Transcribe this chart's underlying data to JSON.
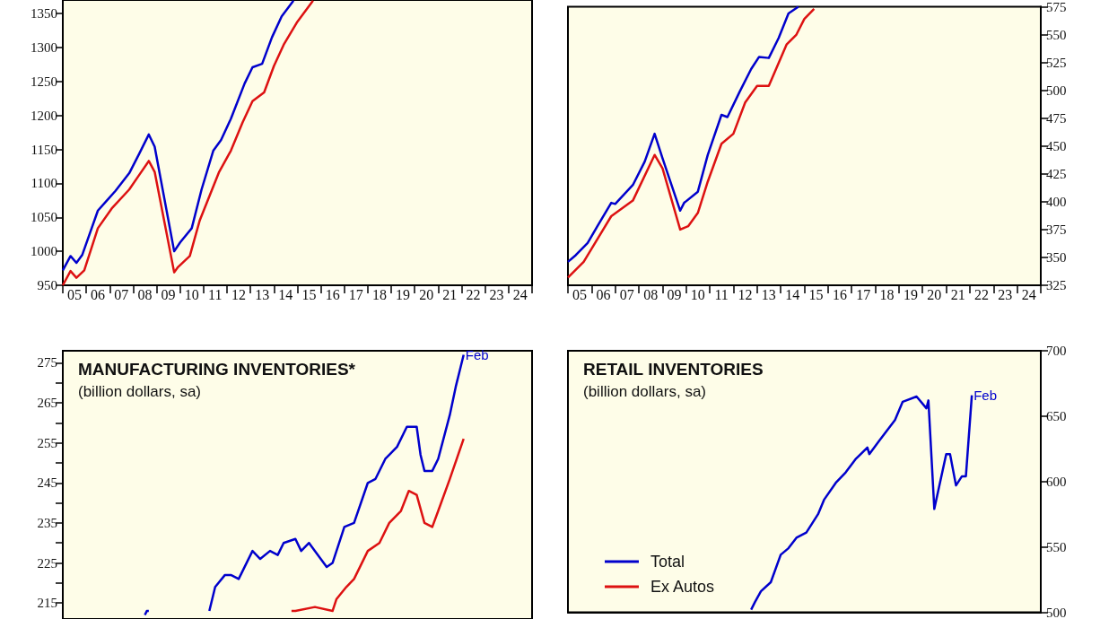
{
  "chart_data": [
    {
      "type": "line",
      "xlim": [
        "2005",
        "2025"
      ],
      "ylim": [
        950,
        1370
      ],
      "yticks": [
        950,
        1000,
        1050,
        1100,
        1150,
        1200,
        1250,
        1300,
        1350
      ],
      "xticks": [
        {
          "value": "2005",
          "label": null
        },
        {
          "value": "2005-07",
          "label": "05"
        },
        {
          "value": "2006",
          "label": null
        },
        {
          "value": "2006-07",
          "label": "06"
        },
        {
          "value": "2007",
          "label": null
        },
        {
          "value": "2007-07",
          "label": "07"
        },
        {
          "value": "2008",
          "label": null
        },
        {
          "value": "2008-07",
          "label": "08"
        },
        {
          "value": "2009",
          "label": null
        },
        {
          "value": "2009-07",
          "label": "09"
        },
        {
          "value": "2010",
          "label": null
        },
        {
          "value": "2010-07",
          "label": "10"
        },
        {
          "value": "2011",
          "label": null
        },
        {
          "value": "2011-07",
          "label": "11"
        },
        {
          "value": "2012",
          "label": null
        },
        {
          "value": "2012-07",
          "label": "12"
        },
        {
          "value": "2013",
          "label": null
        },
        {
          "value": "2013-07",
          "label": "13"
        },
        {
          "value": "2014",
          "label": null
        },
        {
          "value": "2014-07",
          "label": "14"
        },
        {
          "value": "2015",
          "label": null
        },
        {
          "value": "2015-07",
          "label": "15"
        },
        {
          "value": "2016",
          "label": null
        },
        {
          "value": "2016-07",
          "label": "16"
        },
        {
          "value": "2017",
          "label": null
        },
        {
          "value": "2017-07",
          "label": "17"
        },
        {
          "value": "2018",
          "label": null
        },
        {
          "value": "2018-07",
          "label": "18"
        },
        {
          "value": "2019",
          "label": null
        },
        {
          "value": "2019-07",
          "label": "19"
        },
        {
          "value": "2020",
          "label": null
        },
        {
          "value": "2020-07",
          "label": "20"
        },
        {
          "value": "2021",
          "label": null
        },
        {
          "value": "2021-07",
          "label": "21"
        },
        {
          "value": "2022",
          "label": null
        },
        {
          "value": "2022-07",
          "label": "22"
        },
        {
          "value": "2023",
          "label": null
        },
        {
          "value": "2023-07",
          "label": "23"
        },
        {
          "value": "2024",
          "label": null
        },
        {
          "value": "2024-07",
          "label": "24"
        },
        {
          "value": "2025",
          "label": null
        }
      ],
      "grid": false,
      "series": [
        {
          "color": "#0000cc",
          "x": [
            "2005-01",
            "2005-05",
            "2005-08",
            "2005-11",
            "2006-07",
            "2006-11",
            "2007-04",
            "2007-11",
            "2008-04",
            "2008-09",
            "2008-12",
            "2009-10",
            "2010-01",
            "2010-07",
            "2010-12",
            "2011-06",
            "2011-10",
            "2012-03",
            "2012-10",
            "2013-02",
            "2013-07",
            "2013-12",
            "2014-05",
            "2014-11"
          ],
          "values": [
            972,
            993,
            983,
            995,
            1060,
            1073,
            1089,
            1115,
            1143,
            1172,
            1154,
            1000,
            1013,
            1034,
            1091,
            1148,
            1164,
            1195,
            1247,
            1271,
            1276,
            1315,
            1346,
            1369
          ]
        },
        {
          "color": "#dd1111",
          "x": [
            "2005-01",
            "2005-05",
            "2005-08",
            "2005-12",
            "2006-07",
            "2007-02",
            "2007-11",
            "2008-04",
            "2008-09",
            "2008-12",
            "2009-10",
            "2009-12",
            "2010-06",
            "2010-11",
            "2011-09",
            "2012-03",
            "2012-09",
            "2013-02",
            "2013-08",
            "2014-01",
            "2014-06",
            "2015-01",
            "2015-09"
          ],
          "values": [
            950,
            971,
            961,
            972,
            1034,
            1063,
            1091,
            1112,
            1133,
            1117,
            969,
            977,
            993,
            1045,
            1117,
            1148,
            1190,
            1221,
            1234,
            1273,
            1304,
            1338,
            1369
          ]
        }
      ]
    },
    {
      "type": "line",
      "xlim": [
        "2005",
        "2025"
      ],
      "ylim": [
        325,
        575
      ],
      "yticks": [
        325,
        350,
        375,
        400,
        425,
        450,
        475,
        500,
        525,
        550,
        575
      ],
      "xticks": [
        {
          "value": "2005",
          "label": null
        },
        {
          "value": "2005-07",
          "label": "05"
        },
        {
          "value": "2006",
          "label": null
        },
        {
          "value": "2006-07",
          "label": "06"
        },
        {
          "value": "2007",
          "label": null
        },
        {
          "value": "2007-07",
          "label": "07"
        },
        {
          "value": "2008",
          "label": null
        },
        {
          "value": "2008-07",
          "label": "08"
        },
        {
          "value": "2009",
          "label": null
        },
        {
          "value": "2009-07",
          "label": "09"
        },
        {
          "value": "2010",
          "label": null
        },
        {
          "value": "2010-07",
          "label": "10"
        },
        {
          "value": "2011",
          "label": null
        },
        {
          "value": "2011-07",
          "label": "11"
        },
        {
          "value": "2012",
          "label": null
        },
        {
          "value": "2012-07",
          "label": "12"
        },
        {
          "value": "2013",
          "label": null
        },
        {
          "value": "2013-07",
          "label": "13"
        },
        {
          "value": "2014",
          "label": null
        },
        {
          "value": "2014-07",
          "label": "14"
        },
        {
          "value": "2015",
          "label": null
        },
        {
          "value": "2015-07",
          "label": "15"
        },
        {
          "value": "2016",
          "label": null
        },
        {
          "value": "2016-07",
          "label": "16"
        },
        {
          "value": "2017",
          "label": null
        },
        {
          "value": "2017-07",
          "label": "17"
        },
        {
          "value": "2018",
          "label": null
        },
        {
          "value": "2018-07",
          "label": "18"
        },
        {
          "value": "2019",
          "label": null
        },
        {
          "value": "2019-07",
          "label": "19"
        },
        {
          "value": "2020",
          "label": null
        },
        {
          "value": "2020-07",
          "label": "20"
        },
        {
          "value": "2021",
          "label": null
        },
        {
          "value": "2021-07",
          "label": "21"
        },
        {
          "value": "2022",
          "label": null
        },
        {
          "value": "2022-07",
          "label": "22"
        },
        {
          "value": "2023",
          "label": null
        },
        {
          "value": "2023-07",
          "label": "23"
        },
        {
          "value": "2024",
          "label": null
        },
        {
          "value": "2024-07",
          "label": "24"
        },
        {
          "value": "2025",
          "label": null
        }
      ],
      "grid": false,
      "series": [
        {
          "color": "#0000cc",
          "x": [
            "2005-01",
            "2005-05",
            "2005-11",
            "2006-04",
            "2006-11",
            "2007-01",
            "2007-10",
            "2008-04",
            "2008-09",
            "2009-01",
            "2009-10",
            "2009-12",
            "2010-07",
            "2010-12",
            "2011-07",
            "2011-10",
            "2012-04",
            "2012-10",
            "2013-02",
            "2013-07",
            "2013-12",
            "2014-05",
            "2014-10"
          ],
          "values": [
            346,
            352,
            363,
            378,
            399,
            398,
            415,
            436,
            461,
            439,
            392,
            399,
            409,
            442,
            478,
            476,
            498,
            519,
            530,
            529,
            547,
            569,
            575
          ]
        },
        {
          "color": "#dd1111",
          "x": [
            "2005-01",
            "2005-09",
            "2006-11",
            "2007-10",
            "2008-09",
            "2009-01",
            "2009-10",
            "2010-02",
            "2010-07",
            "2010-12",
            "2011-07",
            "2012-01",
            "2012-07",
            "2013-01",
            "2013-07",
            "2014-04",
            "2014-09",
            "2015-01",
            "2015-06"
          ],
          "values": [
            332,
            346,
            387,
            401,
            442,
            430,
            375,
            378,
            390,
            418,
            452,
            461,
            489,
            504,
            504,
            541,
            550,
            564,
            573
          ]
        }
      ]
    },
    {
      "type": "line",
      "title": "MANUFACTURING INVENTORIES*",
      "subtitle": "(billion dollars, sa)",
      "xlim": [
        "2005",
        "2025"
      ],
      "ylim": [
        211,
        278
      ],
      "yticks": [
        215,
        {
          "value": 220,
          "label": null
        },
        225,
        {
          "value": 230,
          "label": null
        },
        235,
        {
          "value": 240,
          "label": null
        },
        245,
        {
          "value": 250,
          "label": null
        },
        255,
        {
          "value": 260,
          "label": null
        },
        265,
        {
          "value": 270,
          "label": null
        },
        275
      ],
      "tick_labels": "y",
      "grid": false,
      "annotations": [
        {
          "text": "Feb",
          "x": "2022-02",
          "y": 277
        }
      ],
      "series": [
        {
          "color": "#0000cc",
          "x": [
            "2008-07",
            "2008-08",
            "2008-09",
            "2008-10",
            "2011-03",
            "2011-04",
            "2011-07",
            "2011-12",
            "2012-03",
            "2012-07",
            "2013-02",
            "2013-06",
            "2013-11",
            "2014-03",
            "2014-06",
            "2014-12",
            "2015-03",
            "2015-07",
            "2015-10",
            "2016-04",
            "2016-07",
            "2017-01",
            "2017-06",
            "2018-01",
            "2018-05",
            "2018-10",
            "2019-04",
            "2019-09",
            "2020-02",
            "2020-04",
            "2020-06",
            "2020-10",
            "2021-01",
            "2021-07",
            "2021-10",
            "2022-02"
          ],
          "values": [
            212,
            213,
            213,
            null,
            null,
            213,
            219,
            222,
            222,
            221,
            228,
            226,
            228,
            227,
            230,
            231,
            228,
            230,
            228,
            224,
            225,
            234,
            235,
            245,
            246,
            251,
            254,
            259,
            259,
            252,
            248,
            248,
            251,
            262,
            269,
            277
          ]
        },
        {
          "color": "#dd1111",
          "x": [
            "2014-10",
            "2014-12",
            "2015-10",
            "2016-07",
            "2016-09",
            "2017-02",
            "2017-06",
            "2018-01",
            "2018-07",
            "2018-12",
            "2019-06",
            "2019-10",
            "2020-02",
            "2020-06",
            "2020-10",
            "2021-01",
            "2021-07",
            "2022-02"
          ],
          "values": [
            213,
            213,
            214,
            213,
            216,
            219,
            221,
            228,
            230,
            235,
            238,
            243,
            242,
            235,
            234,
            238,
            246,
            256
          ]
        }
      ]
    },
    {
      "type": "line",
      "title": "RETAIL INVENTORIES",
      "subtitle": "(billion dollars, sa)",
      "xlim": [
        "2005",
        "2025"
      ],
      "ylim": [
        500,
        700
      ],
      "yticks": [
        500,
        550,
        600,
        650,
        700
      ],
      "tick_labels": "y",
      "grid": false,
      "legend": "bottom left",
      "annotations": [
        {
          "text": "Feb",
          "x": "2022-02",
          "y": 666
        }
      ],
      "series": [
        {
          "name": "Total",
          "color": "#0000cc",
          "x": [
            "2012-10",
            "2012-12",
            "2013-03",
            "2013-08",
            "2014-01",
            "2014-05",
            "2014-09",
            "2015-02",
            "2015-08",
            "2015-11",
            "2016-05",
            "2016-10",
            "2017-03",
            "2017-09",
            "2017-10",
            "2018-03",
            "2018-11",
            "2019-03",
            "2019-10",
            "2020-03",
            "2020-04",
            "2020-07",
            "2021-01",
            "2021-03",
            "2021-06",
            "2021-09",
            "2021-11",
            "2022-02"
          ],
          "values": [
            502,
            508,
            516,
            523,
            544,
            549,
            557,
            561,
            575,
            586,
            599,
            607,
            617,
            626,
            621,
            631,
            647,
            661,
            665,
            656,
            662,
            579,
            621,
            621,
            597,
            604,
            604,
            666
          ]
        },
        {
          "name": "Ex Autos",
          "color": "#dd1111"
        }
      ]
    }
  ]
}
